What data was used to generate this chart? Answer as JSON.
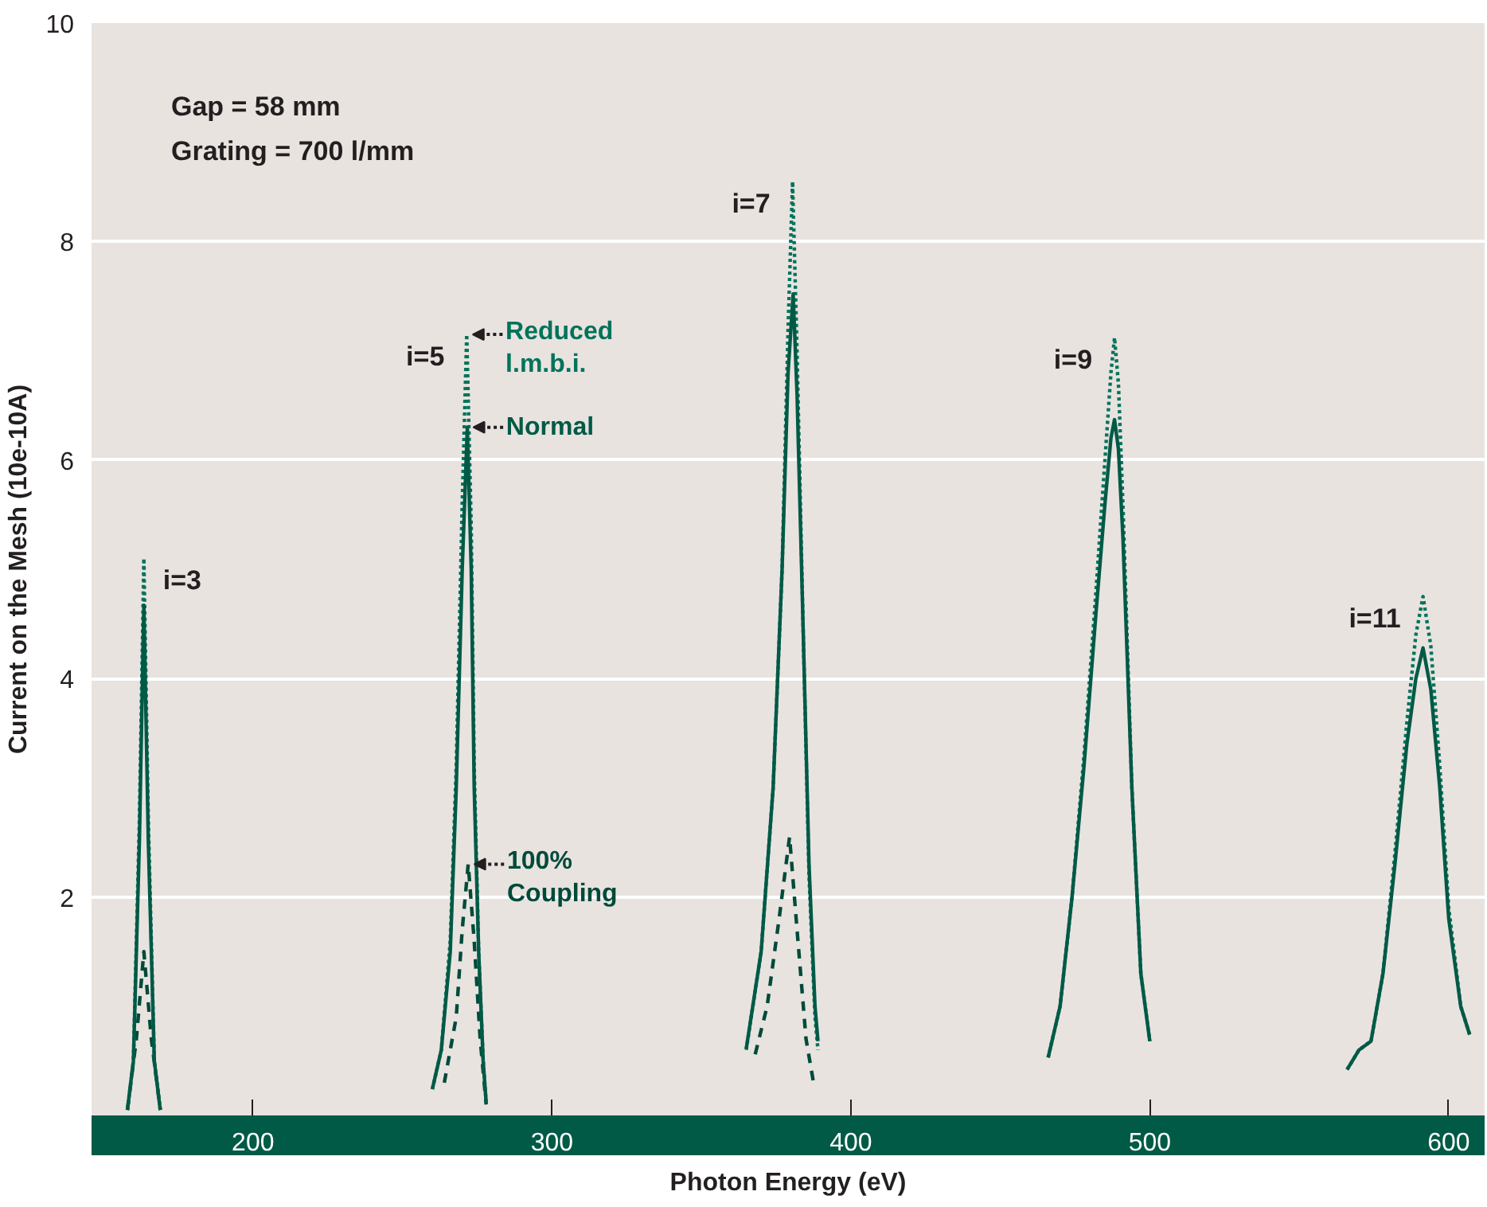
{
  "chart_data": {
    "type": "line",
    "xlabel": "Photon Energy (eV)",
    "ylabel": "Current on the Mesh (10e-10A)",
    "xlim": [
      146,
      612
    ],
    "ylim": [
      0,
      10
    ],
    "xticks": [
      200,
      300,
      400,
      500,
      600
    ],
    "yticks": [
      {
        "value": 0,
        "label": null
      },
      2,
      4,
      6,
      8,
      10
    ],
    "grid": "y",
    "annotations": [
      "Gap = 58 mm",
      "Grating = 700 l/mm",
      {
        "text": "i=3",
        "x": 163.5,
        "y": 5.1
      },
      {
        "text": "i=5",
        "x": 271.5,
        "y": 7.15
      },
      {
        "text": "i=7",
        "x": 380.5,
        "y": 8.55
      },
      {
        "text": "i=9",
        "x": 488.2,
        "y": 7.12
      },
      {
        "text": "i=11",
        "x": 591.4,
        "y": 4.75
      }
    ],
    "series": [
      {
        "name": "100% Coupling",
        "color": "#004a3a",
        "line_style": "dashed",
        "x": [
          158,
          161,
          163.5,
          166,
          169,
          null,
          264,
          268,
          270,
          272,
          274,
          276,
          278,
          null,
          368,
          372,
          376,
          379.5,
          382,
          385,
          387.7
        ],
        "values": [
          0.05,
          0.7,
          1.5,
          0.7,
          0.05,
          null,
          0.3,
          0.9,
          1.7,
          2.3,
          1.6,
          0.7,
          0.1,
          null,
          0.56,
          1.0,
          1.8,
          2.55,
          1.7,
          0.7,
          0.27
        ]
      },
      {
        "name": "Reduced l.m.b.i.",
        "color": "#00735a",
        "line_style": "dotted",
        "x": [
          158,
          160,
          162,
          163.5,
          165,
          167,
          169,
          null,
          260,
          263,
          266,
          268,
          270,
          271.5,
          273,
          274,
          275.5,
          277,
          278,
          null,
          365,
          370,
          374,
          377,
          379,
          380.5,
          382,
          384,
          386,
          388,
          389,
          null,
          466,
          470,
          474,
          478,
          482,
          485,
          487,
          488.2,
          489.5,
          491,
          494,
          497,
          500,
          null,
          566,
          570,
          574,
          578,
          582,
          586,
          589,
          591.4,
          594,
          597,
          600,
          604,
          607
        ],
        "values": [
          0.05,
          0.5,
          2.7,
          5.1,
          2.7,
          0.5,
          0.05,
          null,
          0.24,
          0.6,
          1.6,
          3.2,
          5.6,
          7.15,
          5.4,
          3.2,
          1.5,
          0.5,
          0.12,
          null,
          0.6,
          1.5,
          3.0,
          5.0,
          7.2,
          8.55,
          7.0,
          4.5,
          2.2,
          0.9,
          0.6,
          null,
          0.53,
          1.0,
          2.0,
          3.3,
          4.8,
          6.0,
          6.8,
          7.12,
          6.7,
          5.6,
          3.0,
          1.3,
          0.68,
          null,
          0.42,
          0.6,
          0.68,
          1.3,
          2.4,
          3.6,
          4.4,
          4.75,
          4.3,
          3.2,
          1.9,
          1.0,
          0.74
        ]
      },
      {
        "name": "Normal",
        "color": "#005a46",
        "line_style": "solid",
        "x": [
          158,
          160,
          162,
          163.5,
          165,
          167,
          169,
          null,
          260,
          263,
          266,
          268,
          270,
          271.7,
          273,
          274,
          275.5,
          277,
          278,
          null,
          365,
          370,
          374,
          377,
          379,
          380.7,
          382,
          384,
          386,
          388,
          389,
          null,
          466,
          470,
          474,
          478,
          482,
          485,
          487,
          488.2,
          489.5,
          491,
          494,
          497,
          500,
          null,
          566,
          570,
          574,
          578,
          582,
          586,
          589,
          591.4,
          594,
          597,
          600,
          604,
          607
        ],
        "values": [
          0.05,
          0.5,
          2.5,
          4.67,
          2.5,
          0.5,
          0.05,
          null,
          0.24,
          0.6,
          1.5,
          3.0,
          5.0,
          6.3,
          5.0,
          3.0,
          1.5,
          0.5,
          0.12,
          null,
          0.61,
          1.5,
          3.0,
          5.0,
          6.8,
          7.52,
          6.6,
          4.5,
          2.3,
          1.0,
          0.68,
          null,
          0.53,
          1.0,
          2.0,
          3.2,
          4.6,
          5.6,
          6.2,
          6.37,
          6.1,
          5.3,
          3.0,
          1.3,
          0.68,
          null,
          0.42,
          0.6,
          0.68,
          1.3,
          2.3,
          3.4,
          4.0,
          4.28,
          3.9,
          3.0,
          1.8,
          1.0,
          0.74
        ]
      }
    ]
  }
}
